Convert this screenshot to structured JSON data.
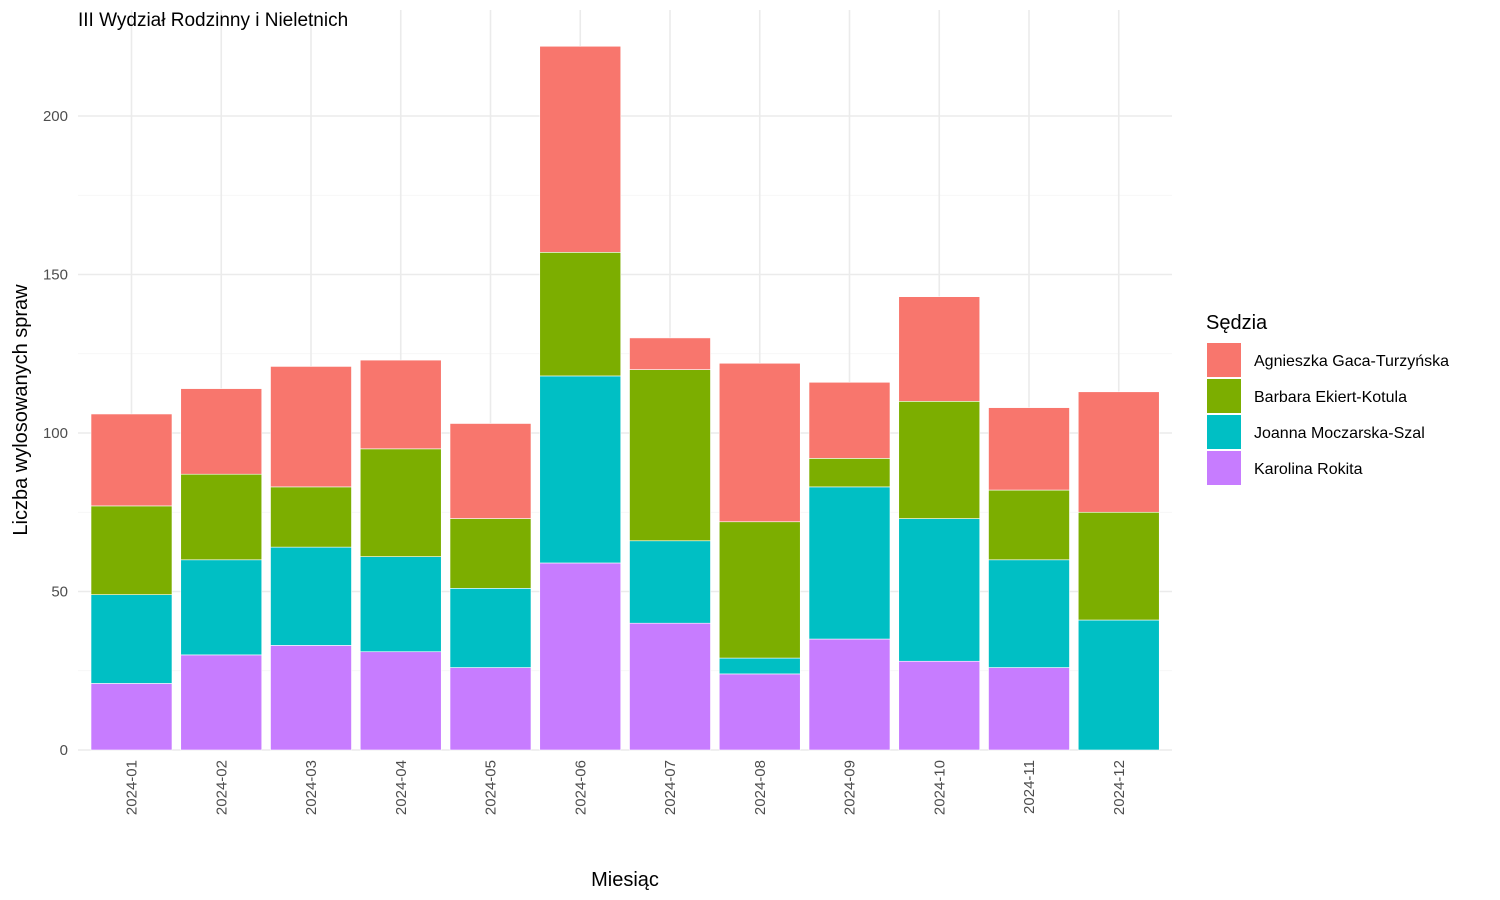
{
  "chart_data": {
    "type": "bar",
    "stacked": true,
    "title": "III Wydział Rodzinny i Nieletnich",
    "xlabel": "Miesiąc",
    "ylabel": "Liczba wylosowanych spraw",
    "ylim": [
      0,
      225
    ],
    "yticks": [
      0,
      50,
      100,
      150,
      200
    ],
    "grid": true,
    "legend_position": "right",
    "legend_title": "Sędzia",
    "categories": [
      "2024-01",
      "2024-02",
      "2024-03",
      "2024-04",
      "2024-05",
      "2024-06",
      "2024-07",
      "2024-08",
      "2024-09",
      "2024-10",
      "2024-11",
      "2024-12"
    ],
    "series": [
      {
        "name": "Agnieszka Gaca-Turzyńska",
        "color": "#F8766D",
        "values": [
          29,
          27,
          38,
          28,
          30,
          65,
          10,
          50,
          24,
          33,
          26,
          38
        ]
      },
      {
        "name": "Barbara Ekiert-Kotula",
        "color": "#7CAE00",
        "values": [
          28,
          27,
          19,
          34,
          22,
          39,
          54,
          43,
          9,
          37,
          22,
          34
        ]
      },
      {
        "name": "Joanna Moczarska-Szal",
        "color": "#00BFC4",
        "values": [
          28,
          30,
          31,
          30,
          25,
          59,
          26,
          5,
          48,
          45,
          34,
          41
        ]
      },
      {
        "name": "Karolina Rokita",
        "color": "#C77CFF",
        "values": [
          21,
          30,
          33,
          31,
          26,
          59,
          40,
          24,
          35,
          28,
          26,
          0
        ]
      }
    ]
  }
}
